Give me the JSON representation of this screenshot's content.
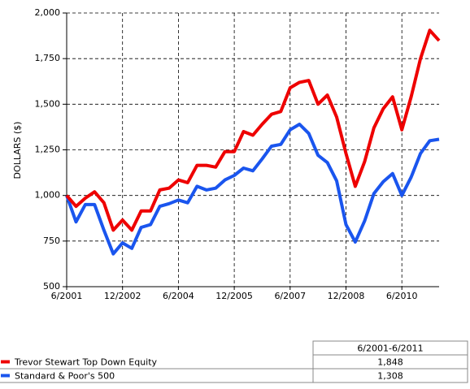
{
  "chart_data": {
    "type": "line",
    "y_label": "DOLLARS ($)",
    "categories": [
      "6/2001",
      null,
      null,
      null,
      null,
      null,
      "12/2002",
      null,
      null,
      null,
      null,
      null,
      "6/2004",
      null,
      null,
      null,
      null,
      null,
      "12/2005",
      null,
      null,
      null,
      null,
      null,
      "6/2007",
      null,
      null,
      null,
      null,
      null,
      "12/2008",
      null,
      null,
      null,
      null,
      null,
      "6/2010",
      null,
      null,
      null,
      null
    ],
    "series": [
      {
        "name": "Trevor Stewart Top Down Equity",
        "color": "#ee0000",
        "values": [
          1000,
          940,
          985,
          1020,
          960,
          810,
          865,
          810,
          915,
          915,
          1030,
          1040,
          1085,
          1070,
          1165,
          1165,
          1155,
          1240,
          1240,
          1350,
          1330,
          1390,
          1445,
          1460,
          1590,
          1620,
          1630,
          1500,
          1550,
          1430,
          1230,
          1050,
          1185,
          1370,
          1475,
          1540,
          1360,
          1540,
          1750,
          1905,
          1848
        ]
      },
      {
        "name": "Standard & Poor's 500",
        "color": "#1a55ee",
        "values": [
          1000,
          855,
          950,
          950,
          810,
          680,
          740,
          710,
          825,
          840,
          940,
          955,
          975,
          960,
          1050,
          1030,
          1040,
          1085,
          1110,
          1150,
          1135,
          1200,
          1270,
          1280,
          1360,
          1390,
          1340,
          1220,
          1180,
          1080,
          840,
          745,
          860,
          1010,
          1075,
          1120,
          1000,
          1100,
          1230,
          1300,
          1308
        ]
      }
    ],
    "ylim": [
      500,
      2000
    ],
    "yticks": [
      500,
      750,
      {
        "value": 1000,
        "label": "1,000"
      },
      {
        "value": 1250,
        "label": "1,250"
      },
      {
        "value": 1500,
        "label": "1,500"
      },
      {
        "value": 1750,
        "label": "1,750"
      },
      {
        "value": 2000,
        "label": "2,000"
      }
    ],
    "grid": true
  },
  "table": {
    "header": "6/2001-6/2011",
    "rows": [
      "1,848",
      "1,308"
    ]
  }
}
